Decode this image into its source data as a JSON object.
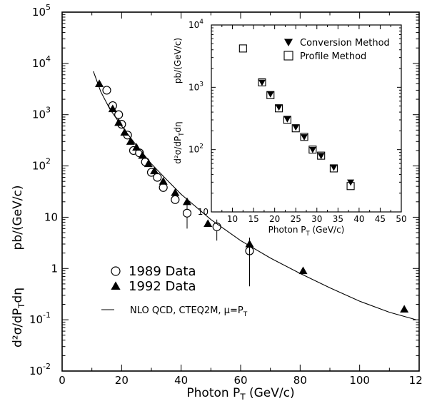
{
  "chart_data": [
    {
      "type": "scatter",
      "xlabel": "Photon P_T   (GeV/c)",
      "ylabel_top": "pb/(GeV/c)",
      "ylabel_bottom": "d²σ/dP_Tdη",
      "xlim": [
        0,
        120
      ],
      "ylim": [
        0.01,
        100000
      ],
      "yscale": "log",
      "x_ticks": [
        0,
        20,
        40,
        60,
        80,
        100,
        120
      ],
      "y_ticks": [
        {
          "value": 0.01,
          "label": "10",
          "exp": "-2"
        },
        {
          "value": 0.1,
          "label": "10",
          "exp": "-1"
        },
        {
          "value": 1,
          "label": "1",
          "exp": ""
        },
        {
          "value": 10,
          "label": "10",
          "exp": ""
        },
        {
          "value": 100,
          "label": "10",
          "exp": "2"
        },
        {
          "value": 1000,
          "label": "10",
          "exp": "3"
        },
        {
          "value": 10000,
          "label": "10",
          "exp": "4"
        },
        {
          "value": 100000,
          "label": "10",
          "exp": "5"
        }
      ],
      "grid": false,
      "legend_position": "bottom-left",
      "series": [
        {
          "name": "1989 Data",
          "marker": "open-circle",
          "points": [
            {
              "x": 15,
              "y": 3000
            },
            {
              "x": 17,
              "y": 1500
            },
            {
              "x": 19,
              "y": 1000
            },
            {
              "x": 20,
              "y": 650
            },
            {
              "x": 22,
              "y": 400
            },
            {
              "x": 24,
              "y": 200
            },
            {
              "x": 26,
              "y": 180
            },
            {
              "x": 28,
              "y": 120
            },
            {
              "x": 30,
              "y": 75
            },
            {
              "x": 32,
              "y": 60
            },
            {
              "x": 34,
              "y": 38
            },
            {
              "x": 38,
              "y": 22
            },
            {
              "x": 42,
              "y": 12,
              "err_lo": 6,
              "err_hi": 20
            },
            {
              "x": 52,
              "y": 6.5,
              "err_lo": 3.5,
              "err_hi": 9
            },
            {
              "x": 63,
              "y": 2.2,
              "err_lo": 0.45,
              "err_hi": 3.5
            }
          ]
        },
        {
          "name": "1992 Data",
          "marker": "filled-triangle",
          "points": [
            {
              "x": 12.5,
              "y": 4000
            },
            {
              "x": 17,
              "y": 1300
            },
            {
              "x": 19,
              "y": 700
            },
            {
              "x": 21,
              "y": 450
            },
            {
              "x": 23,
              "y": 300
            },
            {
              "x": 25,
              "y": 230
            },
            {
              "x": 27,
              "y": 160
            },
            {
              "x": 29,
              "y": 110
            },
            {
              "x": 31,
              "y": 80
            },
            {
              "x": 34,
              "y": 50
            },
            {
              "x": 38,
              "y": 30
            },
            {
              "x": 42,
              "y": 20
            },
            {
              "x": 49,
              "y": 7.5
            },
            {
              "x": 63,
              "y": 3,
              "err_lo": 1.5,
              "err_hi": 4
            },
            {
              "x": 81,
              "y": 0.9
            },
            {
              "x": 115,
              "y": 0.16
            }
          ]
        },
        {
          "name": "NLO QCD, CTEQ2M, μ=P_T",
          "type": "line",
          "points": [
            {
              "x": 10.5,
              "y": 7000
            },
            {
              "x": 13,
              "y": 2800
            },
            {
              "x": 16,
              "y": 1300
            },
            {
              "x": 20,
              "y": 600
            },
            {
              "x": 25,
              "y": 250
            },
            {
              "x": 30,
              "y": 110
            },
            {
              "x": 35,
              "y": 55
            },
            {
              "x": 40,
              "y": 28
            },
            {
              "x": 50,
              "y": 9
            },
            {
              "x": 60,
              "y": 3.5
            },
            {
              "x": 70,
              "y": 1.6
            },
            {
              "x": 80,
              "y": 0.8
            },
            {
              "x": 90,
              "y": 0.42
            },
            {
              "x": 100,
              "y": 0.23
            },
            {
              "x": 110,
              "y": 0.14
            },
            {
              "x": 119,
              "y": 0.1
            }
          ]
        }
      ],
      "legend": [
        {
          "label": "1989 Data",
          "marker": "open-circle"
        },
        {
          "label": "1992 Data",
          "marker": "filled-triangle"
        },
        {
          "label": "NLO QCD, CTEQ2M, μ=P_T",
          "marker": "line"
        }
      ]
    },
    {
      "type": "scatter",
      "inset": true,
      "xlabel": "Photon P_T   (GeV/c)",
      "ylabel_top": "pb/(GeV/c)",
      "ylabel_bottom": "d²σ/dP_Tdη",
      "xlim": [
        5,
        50
      ],
      "ylim": [
        10,
        10000
      ],
      "yscale": "log",
      "x_ticks": [
        10,
        15,
        20,
        25,
        30,
        35,
        40,
        45,
        50
      ],
      "y_ticks": [
        {
          "value": 10,
          "label": "10",
          "exp": ""
        },
        {
          "value": 100,
          "label": "10",
          "exp": "2"
        },
        {
          "value": 1000,
          "label": "10",
          "exp": "3"
        },
        {
          "value": 10000,
          "label": "10",
          "exp": "4"
        }
      ],
      "legend_position": "top-right",
      "series": [
        {
          "name": "Conversion Method",
          "marker": "filled-triangle-down",
          "points": [
            {
              "x": 17,
              "y": 1200
            },
            {
              "x": 19,
              "y": 780
            },
            {
              "x": 21,
              "y": 480
            },
            {
              "x": 23,
              "y": 310
            },
            {
              "x": 25,
              "y": 230
            },
            {
              "x": 27,
              "y": 160
            },
            {
              "x": 29,
              "y": 100
            },
            {
              "x": 31,
              "y": 80
            },
            {
              "x": 34,
              "y": 52
            },
            {
              "x": 38,
              "y": 30
            }
          ]
        },
        {
          "name": "Profile Method",
          "marker": "open-square",
          "points": [
            {
              "x": 12.5,
              "y": 4200
            },
            {
              "x": 17,
              "y": 1200
            },
            {
              "x": 19,
              "y": 750
            },
            {
              "x": 21,
              "y": 460
            },
            {
              "x": 23,
              "y": 300
            },
            {
              "x": 25,
              "y": 220
            },
            {
              "x": 27,
              "y": 160
            },
            {
              "x": 29,
              "y": 100
            },
            {
              "x": 31,
              "y": 80
            },
            {
              "x": 34,
              "y": 50
            },
            {
              "x": 38,
              "y": 26
            }
          ]
        }
      ],
      "legend": [
        {
          "label": "Conversion Method",
          "marker": "filled-triangle-down"
        },
        {
          "label": "Profile Method",
          "marker": "open-square"
        }
      ]
    }
  ]
}
